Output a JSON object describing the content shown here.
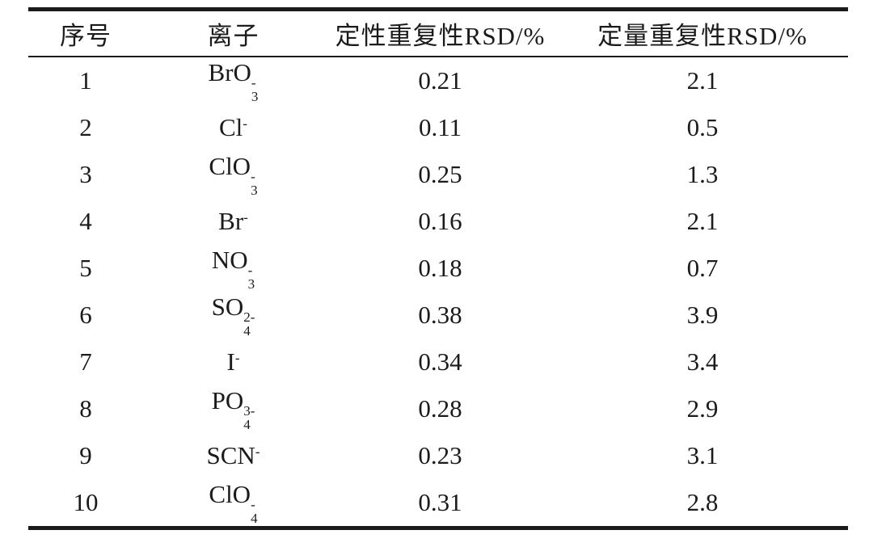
{
  "table": {
    "columns": [
      {
        "label": "序号"
      },
      {
        "label": "离子"
      },
      {
        "label": "定性重复性RSD/%"
      },
      {
        "label": "定量重复性RSD/%"
      }
    ],
    "rows": [
      {
        "index": "1",
        "ion": {
          "base": "BrO",
          "sub": "3",
          "sup": "-"
        },
        "qualitative_rsd": "0.21",
        "quantitative_rsd": "2.1"
      },
      {
        "index": "2",
        "ion": {
          "base": "Cl",
          "sub": "",
          "sup": "-"
        },
        "qualitative_rsd": "0.11",
        "quantitative_rsd": "0.5"
      },
      {
        "index": "3",
        "ion": {
          "base": "ClO",
          "sub": "3",
          "sup": "-"
        },
        "qualitative_rsd": "0.25",
        "quantitative_rsd": "1.3"
      },
      {
        "index": "4",
        "ion": {
          "base": "Br",
          "sub": "",
          "sup": "-"
        },
        "qualitative_rsd": "0.16",
        "quantitative_rsd": "2.1"
      },
      {
        "index": "5",
        "ion": {
          "base": "NO",
          "sub": "3",
          "sup": "-"
        },
        "qualitative_rsd": "0.18",
        "quantitative_rsd": "0.7"
      },
      {
        "index": "6",
        "ion": {
          "base": "SO",
          "sub": "4",
          "sup": "2-"
        },
        "qualitative_rsd": "0.38",
        "quantitative_rsd": "3.9"
      },
      {
        "index": "7",
        "ion": {
          "base": "I",
          "sub": "",
          "sup": "-"
        },
        "qualitative_rsd": "0.34",
        "quantitative_rsd": "3.4"
      },
      {
        "index": "8",
        "ion": {
          "base": "PO",
          "sub": "4",
          "sup": "3-"
        },
        "qualitative_rsd": "0.28",
        "quantitative_rsd": "2.9"
      },
      {
        "index": "9",
        "ion": {
          "base": "SCN",
          "sub": "",
          "sup": "-"
        },
        "qualitative_rsd": "0.23",
        "quantitative_rsd": "3.1"
      },
      {
        "index": "10",
        "ion": {
          "base": "ClO",
          "sub": "4",
          "sup": "-"
        },
        "qualitative_rsd": "0.31",
        "quantitative_rsd": "2.8"
      }
    ]
  },
  "colors": {
    "text": "#1b1b1b",
    "rule": "#1b1b1b",
    "background": "#ffffff"
  }
}
